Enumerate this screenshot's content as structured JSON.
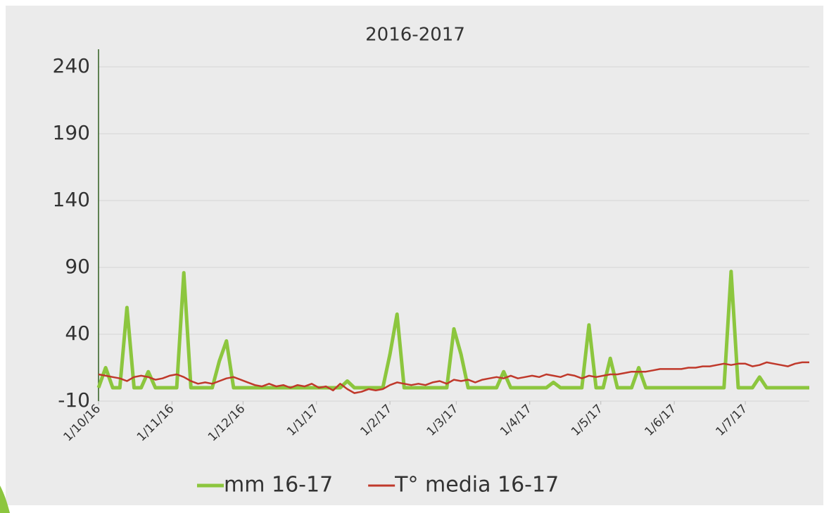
{
  "chart_data": {
    "type": "line",
    "title": "2016-2017",
    "x": [
      "2016-10-01",
      "2016-10-04",
      "2016-10-07",
      "2016-10-10",
      "2016-10-13",
      "2016-10-16",
      "2016-10-19",
      "2016-10-22",
      "2016-10-25",
      "2016-10-28",
      "2016-10-31",
      "2016-11-03",
      "2016-11-06",
      "2016-11-09",
      "2016-11-12",
      "2016-11-15",
      "2016-11-18",
      "2016-11-21",
      "2016-11-24",
      "2016-11-27",
      "2016-11-30",
      "2016-12-03",
      "2016-12-06",
      "2016-12-09",
      "2016-12-12",
      "2016-12-15",
      "2016-12-18",
      "2016-12-21",
      "2016-12-24",
      "2016-12-27",
      "2016-12-30",
      "2017-01-02",
      "2017-01-05",
      "2017-01-08",
      "2017-01-11",
      "2017-01-14",
      "2017-01-17",
      "2017-01-20",
      "2017-01-23",
      "2017-01-26",
      "2017-01-29",
      "2017-02-01",
      "2017-02-04",
      "2017-02-07",
      "2017-02-10",
      "2017-02-13",
      "2017-02-16",
      "2017-02-19",
      "2017-02-22",
      "2017-02-25",
      "2017-02-28",
      "2017-03-03",
      "2017-03-06",
      "2017-03-09",
      "2017-03-12",
      "2017-03-15",
      "2017-03-18",
      "2017-03-21",
      "2017-03-24",
      "2017-03-27",
      "2017-03-30",
      "2017-04-02",
      "2017-04-05",
      "2017-04-08",
      "2017-04-11",
      "2017-04-14",
      "2017-04-17",
      "2017-04-20",
      "2017-04-23",
      "2017-04-26",
      "2017-04-29",
      "2017-05-02",
      "2017-05-05",
      "2017-05-08",
      "2017-05-11",
      "2017-05-14",
      "2017-05-17",
      "2017-05-20",
      "2017-05-23",
      "2017-05-26",
      "2017-05-29",
      "2017-06-01",
      "2017-06-04",
      "2017-06-07",
      "2017-06-10",
      "2017-06-13",
      "2017-06-16",
      "2017-06-19",
      "2017-06-22",
      "2017-06-25",
      "2017-06-28",
      "2017-07-01",
      "2017-07-04",
      "2017-07-07",
      "2017-07-10",
      "2017-07-13",
      "2017-07-16",
      "2017-07-19",
      "2017-07-22",
      "2017-07-25",
      "2017-07-28"
    ],
    "series": [
      {
        "name": "mm 16-17",
        "color": "#8cc63e",
        "width": 5,
        "values": [
          0,
          15,
          0,
          0,
          60,
          0,
          0,
          12,
          0,
          0,
          0,
          0,
          86,
          0,
          0,
          0,
          0,
          20,
          35,
          0,
          0,
          0,
          0,
          0,
          0,
          0,
          0,
          0,
          0,
          0,
          0,
          0,
          0,
          0,
          0,
          5,
          0,
          0,
          0,
          0,
          0,
          25,
          55,
          0,
          0,
          0,
          0,
          0,
          0,
          0,
          44,
          25,
          0,
          0,
          0,
          0,
          0,
          12,
          0,
          0,
          0,
          0,
          0,
          0,
          4,
          0,
          0,
          0,
          0,
          47,
          0,
          0,
          22,
          0,
          0,
          0,
          15,
          0,
          0,
          0,
          0,
          0,
          0,
          0,
          0,
          0,
          0,
          0,
          0,
          87,
          0,
          0,
          0,
          8,
          0,
          0,
          0,
          0,
          0,
          0,
          0
        ]
      },
      {
        "name": "T° media 16-17",
        "color": "#c0392b",
        "width": 2.5,
        "values": [
          10,
          9,
          8,
          7,
          5,
          8,
          9,
          8,
          6,
          7,
          9,
          10,
          8,
          5,
          3,
          4,
          3,
          5,
          7,
          8,
          6,
          4,
          2,
          1,
          3,
          1,
          2,
          0,
          2,
          1,
          3,
          0,
          1,
          -2,
          3,
          -1,
          -4,
          -3,
          -1,
          -2,
          -1,
          2,
          4,
          3,
          2,
          3,
          2,
          4,
          5,
          3,
          6,
          5,
          6,
          4,
          6,
          7,
          8,
          7,
          9,
          7,
          8,
          9,
          8,
          10,
          9,
          8,
          10,
          9,
          7,
          9,
          8,
          9,
          10,
          10,
          11,
          12,
          12,
          12,
          13,
          14,
          14,
          14,
          14,
          15,
          15,
          16,
          16,
          17,
          18,
          17,
          18,
          18,
          16,
          17,
          19,
          18,
          17,
          16,
          18,
          19,
          19
        ]
      }
    ],
    "xlim": [
      "2016-10-01",
      "2017-07-28"
    ],
    "xticks": [
      {
        "value": "2016-10-01",
        "label": "1/10/16"
      },
      {
        "value": "2016-11-01",
        "label": "1/11/16"
      },
      {
        "value": "2016-12-01",
        "label": "1/12/16"
      },
      {
        "value": "2017-01-01",
        "label": "1/1/17"
      },
      {
        "value": "2017-02-01",
        "label": "1/2/17"
      },
      {
        "value": "2017-03-01",
        "label": "1/3/17"
      },
      {
        "value": "2017-04-01",
        "label": "1/4/17"
      },
      {
        "value": "2017-05-01",
        "label": "1/5/17"
      },
      {
        "value": "2017-06-01",
        "label": "1/6/17"
      },
      {
        "value": "2017-07-01",
        "label": "1/7/17"
      }
    ],
    "ylim": [
      -10,
      240
    ],
    "yticks": [
      -10,
      40,
      90,
      140,
      190,
      240
    ],
    "grid": true,
    "legend": "bottom"
  }
}
